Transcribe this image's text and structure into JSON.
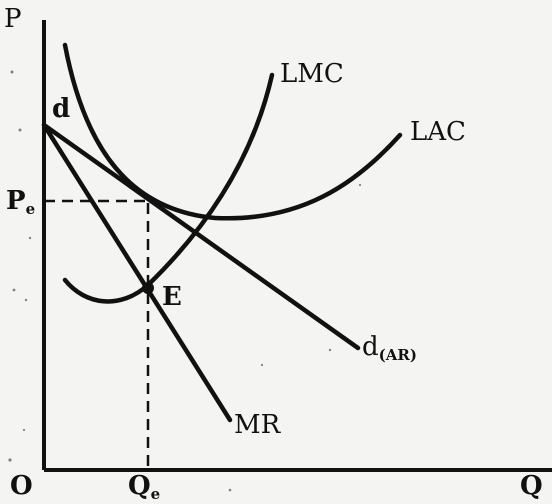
{
  "axes": {
    "y_label": "P",
    "x_label": "Q",
    "origin_label": "O"
  },
  "price_level": {
    "main": "P",
    "sub": "e"
  },
  "quantity_level": {
    "main": "Q",
    "sub": "e"
  },
  "curves": {
    "demand_start": "d",
    "demand_end": {
      "main": "d",
      "sub": "(AR)"
    },
    "lmc": "LMC",
    "lac": "LAC",
    "mr": "MR"
  },
  "point": "E"
}
